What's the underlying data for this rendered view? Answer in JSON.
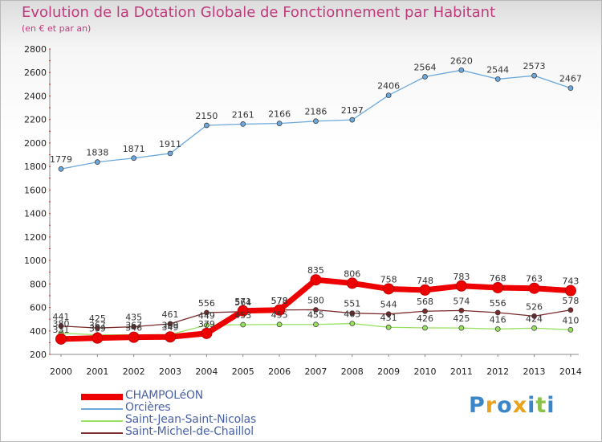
{
  "title": "Evolution de la Dotation Globale de Fonctionnement par Habitant",
  "subtitle": "(en € et par an)",
  "logo": {
    "text": "Proxiti",
    "colors": [
      "#3a86c8",
      "#e9a21c",
      "#3a86c8",
      "#e9a21c",
      "#3a86c8",
      "#8bc34a",
      "#3a86c8"
    ]
  },
  "chart_data": {
    "type": "line",
    "title": "Evolution de la Dotation Globale de Fonctionnement par Habitant",
    "subtitle": "(en € et par an)",
    "xlabel": "",
    "ylabel": "",
    "x": [
      "2000",
      "2001",
      "2002",
      "2003",
      "2004",
      "2005",
      "2006",
      "2007",
      "2008",
      "2009",
      "2010",
      "2011",
      "2012",
      "2013",
      "2014"
    ],
    "ylim": [
      200,
      2800
    ],
    "yticks": [
      200,
      400,
      600,
      800,
      1000,
      1200,
      1400,
      1600,
      1800,
      2000,
      2200,
      2400,
      2600,
      2800
    ],
    "legend_position": "bottom-left",
    "series": [
      {
        "name": "CHAMPOLéON",
        "color": "#ee0000",
        "width": "thick",
        "values": [
          331,
          339,
          346,
          349,
          379,
          571,
          578,
          835,
          806,
          758,
          748,
          783,
          768,
          763,
          743
        ]
      },
      {
        "name": "Orcières",
        "color": "#6ca8dc",
        "width": "thin",
        "values": [
          1779,
          1838,
          1871,
          1911,
          2150,
          2161,
          2166,
          2186,
          2197,
          2406,
          2564,
          2620,
          2544,
          2573,
          2467
        ]
      },
      {
        "name": "Saint-Jean-Saint-Nicolas",
        "color": "#98e060",
        "width": "thin",
        "values": [
          380,
          367,
          367,
          369,
          449,
          453,
          455,
          455,
          463,
          431,
          426,
          425,
          416,
          424,
          410
        ]
      },
      {
        "name": "Saint-Michel-de-Chaillol",
        "color": "#7a2a2a",
        "width": "thin",
        "values": [
          441,
          425,
          435,
          461,
          556,
          564,
          578,
          580,
          551,
          544,
          568,
          574,
          556,
          526,
          578
        ]
      }
    ]
  }
}
